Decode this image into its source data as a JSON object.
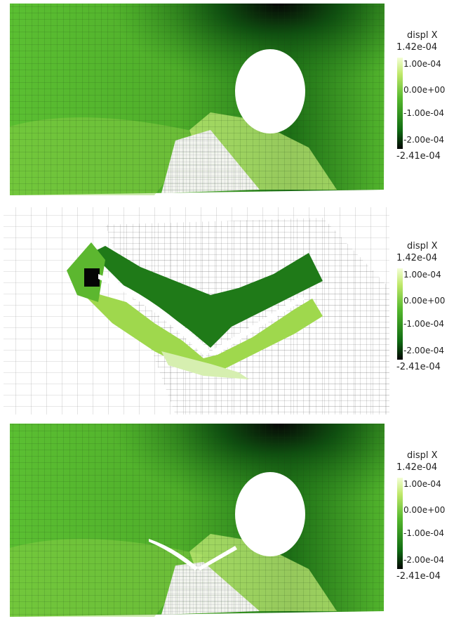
{
  "panels": [
    {
      "id": "top",
      "legend": {
        "title": "displ X",
        "max": "1.42e-04",
        "ticks": [
          "1.00e-04",
          "0.00e+00",
          "-1.00e-04",
          "-2.00e-04"
        ],
        "min": "-2.41e-04"
      }
    },
    {
      "id": "middle",
      "legend": {
        "title": "displ X",
        "max": "1.42e-04",
        "ticks": [
          "1.00e-04",
          "0.00e+00",
          "-1.00e-04",
          "-2.00e-04"
        ],
        "min": "-2.41e-04"
      }
    },
    {
      "id": "bottom",
      "legend": {
        "title": "displ X",
        "max": "1.42e-04",
        "ticks": [
          "1.00e-04",
          "0.00e+00",
          "-1.00e-04",
          "-2.00e-04"
        ],
        "min": "-2.41e-04"
      }
    }
  ],
  "colormap": {
    "high": "#f4ffd6",
    "upper": "#bfe86a",
    "mid": "#55b82d",
    "lower": "#0f6a12",
    "low": "#050505"
  }
}
